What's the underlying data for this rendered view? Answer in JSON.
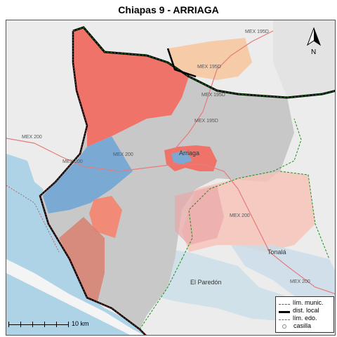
{
  "title": "Chiapas 9 - ARRIAGA",
  "map": {
    "road_labels": [
      {
        "text": "MEX 195D"
      },
      {
        "text": "MEX 195D"
      },
      {
        "text": "MEX 195D"
      },
      {
        "text": "MEX 195D"
      },
      {
        "text": "MEX 200"
      },
      {
        "text": "MEX 200"
      },
      {
        "text": "MEX 200"
      },
      {
        "text": "MEX 200"
      },
      {
        "text": "MEX 200"
      }
    ],
    "place_labels": [
      {
        "text": "Arriaga"
      },
      {
        "text": "Tonalá"
      },
      {
        "text": "El Paredón"
      }
    ],
    "colors": {
      "district": "#f0736a",
      "district_light": "#f6b8a8",
      "blue_area": "#7aaad4",
      "gray_area": "#c8c8c8",
      "sea": "#aed2e6",
      "land": "#ececec"
    }
  },
  "north": {
    "label": "N"
  },
  "scale": {
    "label": "10 km"
  },
  "legend": {
    "items": [
      {
        "label": "lím. munic."
      },
      {
        "label": "dist. local"
      },
      {
        "label": "lím. edo."
      },
      {
        "label": "casilla"
      }
    ]
  }
}
